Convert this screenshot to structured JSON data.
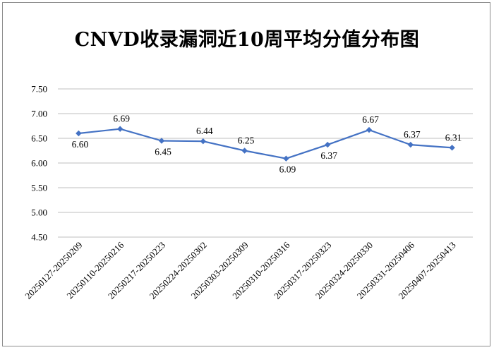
{
  "chart_data": {
    "type": "line",
    "title": "CNVD收录漏洞近10周平均分值分布图",
    "categories": [
      "20250127-20250209",
      "20250110-20250216",
      "20250217-20250223",
      "20250224-20250302",
      "20250303-20250309",
      "20250310-20250316",
      "20250317-20250323",
      "20250324-20250330",
      "20250331-20250406",
      "20250407-20250413"
    ],
    "values": [
      6.6,
      6.69,
      6.45,
      6.44,
      6.25,
      6.09,
      6.37,
      6.67,
      6.37,
      6.31
    ],
    "value_labels": [
      "6.60",
      "6.69",
      "6.45",
      "6.44",
      "6.25",
      "6.09",
      "6.37",
      "6.67",
      "6.37",
      "6.31"
    ],
    "label_side": [
      "below",
      "above",
      "below",
      "above",
      "above",
      "below",
      "below",
      "above",
      "above",
      "above"
    ],
    "ylim": [
      4.5,
      7.5
    ],
    "yticks": [
      "4.50",
      "5.00",
      "5.50",
      "6.00",
      "6.50",
      "7.00",
      "7.50"
    ],
    "ytick_values": [
      4.5,
      5.0,
      5.5,
      6.0,
      6.5,
      7.0,
      7.5
    ],
    "xlabel": "",
    "ylabel": "",
    "grid": true,
    "line_color": "#4472c4",
    "grid_color": "#bfbfbf"
  }
}
